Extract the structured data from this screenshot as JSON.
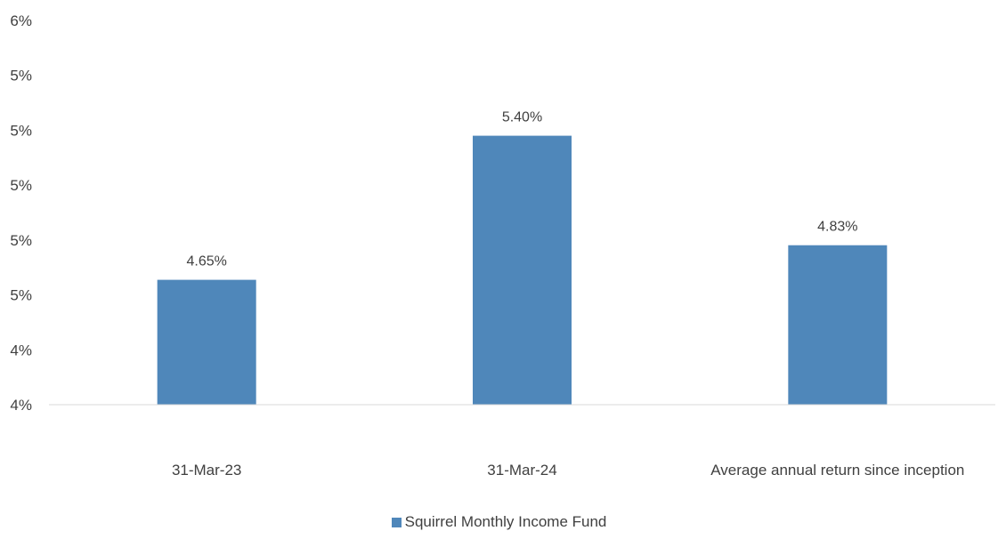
{
  "chart_data": {
    "type": "bar",
    "categories": [
      "31-Mar-23",
      "31-Mar-24",
      "Average annual return since inception"
    ],
    "series": [
      {
        "name": "Squirrel Monthly Income Fund",
        "values": [
          4.65,
          5.4,
          4.83
        ],
        "labels": [
          "4.65%",
          "5.40%",
          "4.83%"
        ],
        "color": "#4f87ba"
      }
    ],
    "y_ticks": [
      "6%",
      "5%",
      "5%",
      "5%",
      "5%",
      "5%",
      "4%",
      "4%"
    ],
    "ylim": [
      4.0,
      6.0
    ],
    "grid": false,
    "legend_position": "bottom"
  }
}
